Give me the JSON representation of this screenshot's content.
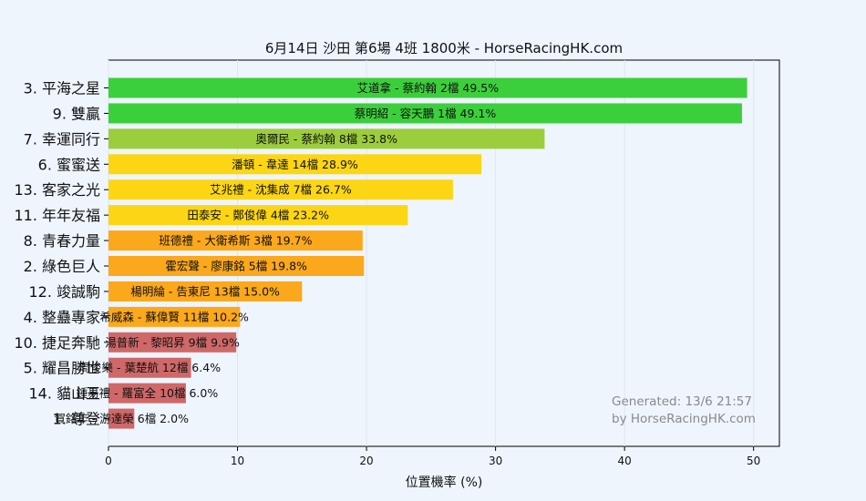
{
  "chart_data": {
    "type": "bar",
    "orientation": "horizontal",
    "title": "6月14日  沙田  第6場  4班  1800米 - HorseRacingHK.com",
    "xlabel": "位置機率 (%)",
    "xlim": [
      0,
      52
    ],
    "xticks": [
      "0",
      "10",
      "20",
      "30",
      "40",
      "50"
    ],
    "grid": true,
    "watermark": [
      "Generated: 13/6 21:57",
      "by HorseRacingHK.com"
    ],
    "bars": [
      {
        "horse": "3. 平海之星",
        "label": "艾道拿 - 蔡約翰 2檔  49.5%",
        "value": 49.5,
        "color": "#3ccf3c"
      },
      {
        "horse": "9. 雙贏",
        "label": "蔡明紹 - 容天鵬 1檔  49.1%",
        "value": 49.1,
        "color": "#3ccf3c"
      },
      {
        "horse": "7. 幸運同行",
        "label": "奧爾民 - 蔡約翰 8檔  33.8%",
        "value": 33.8,
        "color": "#9ccd3c"
      },
      {
        "horse": "6. 蜜蜜送",
        "label": "潘頓 - 韋達 14檔  28.9%",
        "value": 28.9,
        "color": "#fcd614"
      },
      {
        "horse": "13. 客家之光",
        "label": "艾兆禮 - 沈集成 7檔  26.7%",
        "value": 26.7,
        "color": "#fcd614"
      },
      {
        "horse": "11. 年年友福",
        "label": "田泰安 - 鄭俊偉 4檔  23.2%",
        "value": 23.2,
        "color": "#fcd614"
      },
      {
        "horse": "8. 青春力量",
        "label": "班德禮 - 大衛希斯 3檔  19.7%",
        "value": 19.7,
        "color": "#fba81c"
      },
      {
        "horse": "2. 綠色巨人",
        "label": "霍宏聲 - 廖康銘 5檔  19.8%",
        "value": 19.8,
        "color": "#fba81c"
      },
      {
        "horse": "12. 竣誠駒",
        "label": "楊明綸 - 告東尼 13檔  15.0%",
        "value": 15.0,
        "color": "#fba81c"
      },
      {
        "horse": "4. 整蠱專家",
        "label": "希威森 - 蘇偉賢 11檔  10.2%",
        "value": 10.2,
        "color": "#fba81c"
      },
      {
        "horse": "10. 捷足奔馳",
        "label": "湯普新 - 黎昭昇 9檔  9.9%",
        "value": 9.9,
        "color": "#cf6868"
      },
      {
        "horse": "5. 耀昌勝世",
        "label": "周俊樂 - 葉楚航 12檔  6.4%",
        "value": 6.4,
        "color": "#cf6868"
      },
      {
        "horse": "14. 貓山王",
        "label": "鍾易禮 - 羅富全 10檔  6.0%",
        "value": 6.0,
        "color": "#cf6868"
      },
      {
        "horse": "1. 尊登",
        "label": "賀銘年 - 游達榮 6檔  2.0%",
        "value": 2.0,
        "color": "#cf6868"
      }
    ]
  }
}
